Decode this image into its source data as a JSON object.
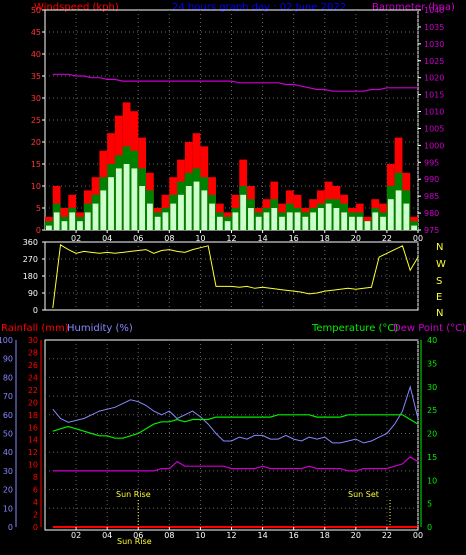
{
  "header": {
    "windspeed_label": "Windspeed (kph)",
    "title": "24 hours graph day : 02 June 2022",
    "barometer_label": "Barometer (hpa)"
  },
  "compass": [
    "N",
    "W",
    "S",
    "E",
    "N"
  ],
  "lower_header": {
    "rainfall_label": "Rainfall (mm)",
    "humidity_label": "Humidity (%)",
    "temperature_label": "Temperature (°C)",
    "dewpoint_label": "Dew Point (°C)"
  },
  "annotations": {
    "sunrise": "Sun Rise",
    "sunset": "Sun Set",
    "sunrise_hour": 6.0,
    "sunset_hour": 22.2
  },
  "colors": {
    "wind_gust": "#ff0000",
    "wind_avg": "#008000",
    "wind_speed": "#ccffcc",
    "barometer": "#cc00cc",
    "direction": "#ffff33",
    "humidity": "#8888ff",
    "temperature": "#00ee00",
    "dewpoint": "#cc00cc",
    "rainfall": "#ff0000",
    "grid": "#666666"
  },
  "x_ticks": [
    "02",
    "04",
    "06",
    "08",
    "10",
    "12",
    "14",
    "16",
    "18",
    "20",
    "22",
    "00"
  ],
  "chart_data": [
    {
      "type": "line",
      "title": "Windspeed / Barometer",
      "ylabel": "Windspeed (kph)",
      "y2label": "Barometer (hpa)",
      "ylim": [
        0,
        50
      ],
      "y2lim": [
        975,
        1040
      ],
      "y_ticks": [
        "0",
        "5",
        "10",
        "15",
        "20",
        "25",
        "30",
        "35",
        "40",
        "45",
        "50"
      ],
      "y2_ticks": [
        "975",
        "980",
        "985",
        "990",
        "995",
        "1000",
        "1005",
        "1010",
        "1015",
        "1020",
        "1025",
        "1030",
        "1035",
        "1040"
      ],
      "x": [
        0.5,
        1,
        1.5,
        2,
        2.5,
        3,
        3.5,
        4,
        4.5,
        5,
        5.5,
        6,
        6.5,
        7,
        7.5,
        8,
        8.5,
        9,
        9.5,
        10,
        10.5,
        11,
        11.5,
        12,
        12.5,
        13,
        13.5,
        14,
        14.5,
        15,
        15.5,
        16,
        16.5,
        17,
        17.5,
        18,
        18.5,
        19,
        19.5,
        20,
        20.5,
        21,
        21.5,
        22,
        22.5,
        23,
        23.5,
        24
      ],
      "series": [
        {
          "name": "gust",
          "values": [
            3,
            10,
            5,
            8,
            4,
            9,
            12,
            18,
            22,
            26,
            29,
            27,
            21,
            13,
            5,
            8,
            12,
            16,
            20,
            22,
            19,
            12,
            6,
            4,
            8,
            16,
            10,
            5,
            7,
            11,
            6,
            9,
            8,
            5,
            7,
            9,
            11,
            10,
            8,
            5,
            6,
            3,
            7,
            6,
            15,
            21,
            13,
            3
          ]
        },
        {
          "name": "average",
          "values": [
            2,
            6,
            3,
            5,
            3,
            6,
            8,
            12,
            15,
            17,
            19,
            18,
            14,
            9,
            4,
            5,
            8,
            11,
            13,
            14,
            12,
            8,
            4,
            3,
            5,
            10,
            7,
            4,
            5,
            7,
            4,
            6,
            5,
            4,
            5,
            6,
            7,
            7,
            6,
            4,
            4,
            2,
            5,
            4,
            10,
            13,
            9,
            2
          ]
        },
        {
          "name": "speed",
          "values": [
            1,
            4,
            2,
            4,
            2,
            4,
            6,
            9,
            12,
            14,
            15,
            14,
            10,
            6,
            3,
            4,
            6,
            8,
            10,
            11,
            9,
            6,
            3,
            2,
            4,
            8,
            5,
            3,
            4,
            5,
            3,
            4,
            4,
            3,
            4,
            5,
            6,
            5,
            4,
            3,
            3,
            2,
            4,
            3,
            7,
            9,
            6,
            1
          ]
        },
        {
          "name": "barometer",
          "values": [
            1021,
            1021,
            1021,
            1020.5,
            1020.5,
            1020,
            1020,
            1019.5,
            1019.5,
            1019,
            1019,
            1019,
            1019,
            1019,
            1019,
            1019,
            1019,
            1019,
            1019,
            1019,
            1019,
            1019,
            1019,
            1019,
            1018.5,
            1018.5,
            1018.5,
            1018.5,
            1018.5,
            1018.5,
            1018,
            1018,
            1017.5,
            1017,
            1016.5,
            1016.5,
            1016,
            1016,
            1016,
            1016,
            1016,
            1016.5,
            1016.5,
            1017,
            1017,
            1017,
            1017,
            1017
          ]
        }
      ]
    },
    {
      "type": "line",
      "title": "Wind Direction",
      "ylim": [
        0,
        360
      ],
      "y_ticks": [
        "0",
        "90",
        "180",
        "270",
        "360"
      ],
      "x": [
        0.5,
        1,
        1.5,
        2,
        2.5,
        3,
        3.5,
        4,
        4.5,
        5,
        5.5,
        6,
        6.5,
        7,
        7.5,
        8,
        8.5,
        9,
        9.5,
        10,
        10.5,
        11,
        11.5,
        12,
        12.5,
        13,
        13.5,
        14,
        14.5,
        15,
        15.5,
        16,
        16.5,
        17,
        17.5,
        18,
        18.5,
        19,
        19.5,
        20,
        20.5,
        21,
        21.5,
        22,
        22.5,
        23,
        23.5,
        24
      ],
      "series": [
        {
          "name": "direction",
          "values": [
            10,
            345,
            320,
            300,
            310,
            305,
            300,
            305,
            300,
            305,
            310,
            315,
            320,
            300,
            315,
            320,
            310,
            305,
            320,
            330,
            340,
            125,
            125,
            125,
            120,
            125,
            115,
            120,
            115,
            110,
            105,
            100,
            95,
            85,
            90,
            100,
            105,
            110,
            115,
            110,
            115,
            120,
            280,
            300,
            320,
            340,
            210,
            280
          ]
        }
      ]
    },
    {
      "type": "line",
      "title": "Temperature / Humidity / Rainfall",
      "y_humidity_lim": [
        0,
        100
      ],
      "y_rain_lim": [
        0,
        30
      ],
      "y_temp_lim": [
        0,
        40
      ],
      "y_humidity_ticks": [
        "0",
        "10",
        "20",
        "30",
        "40",
        "50",
        "60",
        "70",
        "80",
        "90",
        "100"
      ],
      "y_rain_ticks": [
        "0",
        "2",
        "4",
        "6",
        "8",
        "10",
        "12",
        "14",
        "16",
        "18",
        "20",
        "22",
        "24",
        "26",
        "28",
        "30"
      ],
      "y_temp_ticks": [
        "0",
        "5",
        "10",
        "15",
        "20",
        "25",
        "30",
        "35",
        "40"
      ],
      "x": [
        0.5,
        1,
        1.5,
        2,
        2.5,
        3,
        3.5,
        4,
        4.5,
        5,
        5.5,
        6,
        6.5,
        7,
        7.5,
        8,
        8.5,
        9,
        9.5,
        10,
        10.5,
        11,
        11.5,
        12,
        12.5,
        13,
        13.5,
        14,
        14.5,
        15,
        15.5,
        16,
        16.5,
        17,
        17.5,
        18,
        18.5,
        19,
        19.5,
        20,
        20.5,
        21,
        21.5,
        22,
        22.5,
        23,
        23.5,
        24
      ],
      "series": [
        {
          "name": "humidity",
          "values": [
            63,
            58,
            56,
            57,
            58,
            60,
            62,
            63,
            64,
            66,
            68,
            67,
            65,
            62,
            60,
            62,
            58,
            60,
            62,
            59,
            55,
            50,
            46,
            46,
            48,
            47,
            49,
            49,
            47,
            47,
            49,
            47,
            46,
            48,
            47,
            48,
            45,
            45,
            46,
            47,
            45,
            46,
            48,
            50,
            55,
            62,
            75,
            58
          ]
        },
        {
          "name": "temperature",
          "values": [
            20.5,
            21,
            21.5,
            21,
            20.5,
            20,
            19.5,
            19.5,
            19,
            19,
            19.5,
            20,
            21,
            22,
            22.5,
            22.5,
            23,
            22.5,
            23,
            23,
            23,
            23.5,
            23.5,
            23.5,
            23.5,
            23.5,
            23.5,
            23.5,
            23.5,
            24,
            24,
            24,
            24,
            24,
            23.5,
            23.5,
            23.5,
            23.5,
            24,
            24,
            24,
            24,
            24,
            24,
            24,
            24,
            23,
            22
          ]
        },
        {
          "name": "dewpoint",
          "values": [
            12,
            12,
            12,
            12,
            12,
            12,
            12,
            12,
            12,
            12,
            12,
            12,
            12,
            12,
            12.5,
            12.5,
            14,
            13,
            13,
            13,
            13,
            13,
            13,
            12.5,
            12.5,
            12.5,
            12.5,
            13,
            12.5,
            12.5,
            12.5,
            12.5,
            12.5,
            13,
            12.5,
            12.5,
            12.5,
            12.5,
            12,
            12,
            12.5,
            12.5,
            12.5,
            12.5,
            13,
            13.5,
            15,
            14
          ]
        },
        {
          "name": "rainfall",
          "values": [
            0,
            0,
            0,
            0,
            0,
            0,
            0,
            0,
            0,
            0,
            0,
            0,
            0,
            0,
            0,
            0,
            0,
            0,
            0,
            0,
            0,
            0,
            0,
            0,
            0,
            0,
            0,
            0,
            0,
            0,
            0,
            0,
            0,
            0,
            0,
            0,
            0,
            0,
            0,
            0,
            0,
            0,
            0,
            0,
            0,
            0,
            0,
            0
          ]
        }
      ]
    }
  ]
}
